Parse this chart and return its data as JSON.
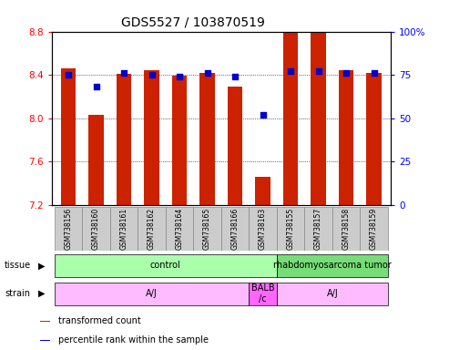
{
  "title": "GDS5527 / 103870519",
  "samples": [
    "GSM738156",
    "GSM738160",
    "GSM738161",
    "GSM738162",
    "GSM738164",
    "GSM738165",
    "GSM738166",
    "GSM738163",
    "GSM738155",
    "GSM738157",
    "GSM738158",
    "GSM738159"
  ],
  "bar_values": [
    8.46,
    8.03,
    8.41,
    8.44,
    8.39,
    8.42,
    8.29,
    7.46,
    8.79,
    8.79,
    8.44,
    8.42
  ],
  "percentile_values": [
    75,
    68,
    76,
    75,
    74,
    76,
    74,
    52,
    77,
    77,
    76,
    76
  ],
  "bar_color": "#CC2200",
  "dot_color": "#0000CC",
  "ymin": 7.2,
  "ymax": 8.8,
  "y_ticks": [
    7.2,
    7.6,
    8.0,
    8.4,
    8.8
  ],
  "right_y_ticks": [
    0,
    25,
    50,
    75,
    100
  ],
  "tissue_labels": [
    {
      "text": "control",
      "start": 0,
      "end": 7,
      "color": "#AAFFAA"
    },
    {
      "text": "rhabdomyosarcoma tumor",
      "start": 8,
      "end": 11,
      "color": "#77DD77"
    }
  ],
  "strain_labels": [
    {
      "text": "A/J",
      "start": 0,
      "end": 6,
      "color": "#FFBBFF"
    },
    {
      "text": "BALB\n/c",
      "start": 7,
      "end": 7,
      "color": "#FF66FF"
    },
    {
      "text": "A/J",
      "start": 8,
      "end": 11,
      "color": "#FFBBFF"
    }
  ],
  "tissue_row_label": "tissue",
  "strain_row_label": "strain",
  "legend_items": [
    {
      "color": "#CC2200",
      "label": "transformed count"
    },
    {
      "color": "#0000CC",
      "label": "percentile rank within the sample"
    }
  ],
  "sample_box_color": "#CCCCCC",
  "sample_box_edge": "#888888",
  "title_fontsize": 10,
  "tick_fontsize": 7.5,
  "sample_fontsize": 5.5,
  "row_label_fontsize": 7,
  "cell_fontsize": 7,
  "legend_fontsize": 7
}
